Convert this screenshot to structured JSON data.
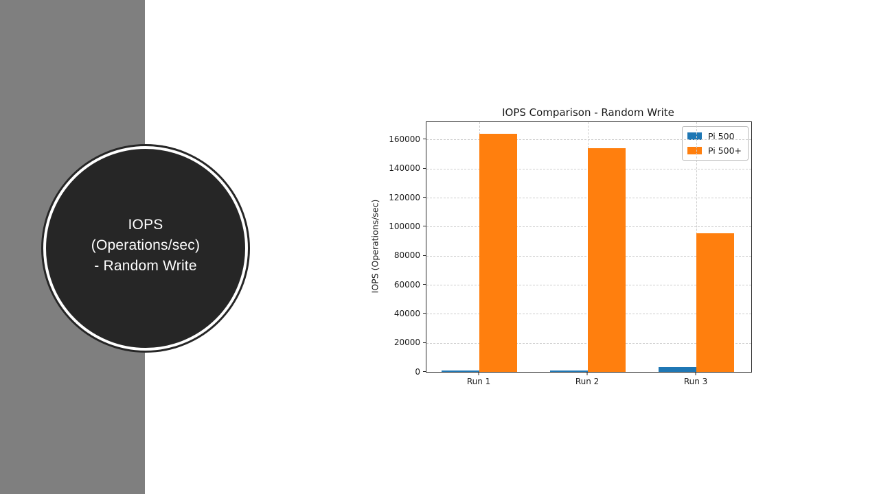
{
  "slide": {
    "title_lines": [
      "IOPS",
      "(Operations/sec)",
      "- Random Write"
    ],
    "accent_band_color": "#7f7f7f",
    "circle_fill_color": "#262626",
    "circle_ring_color": "#ffffff",
    "circle_text_color": "#ffffff"
  },
  "chart_data": {
    "type": "bar",
    "title": "IOPS Comparison - Random Write",
    "xlabel": "",
    "ylabel": "IOPS (Operations/sec)",
    "categories": [
      "Run 1",
      "Run 2",
      "Run 3"
    ],
    "series": [
      {
        "name": "Pi 500",
        "color": "#1f77b4",
        "values": [
          1100,
          1000,
          3500
        ]
      },
      {
        "name": "Pi 500+",
        "color": "#ff7f0e",
        "values": [
          164000,
          154000,
          95500
        ]
      }
    ],
    "yticks": [
      0,
      20000,
      40000,
      60000,
      80000,
      100000,
      120000,
      140000,
      160000
    ],
    "ylim": [
      0,
      172000
    ],
    "grid": true,
    "grid_style": "dashed",
    "legend_position": "upper right",
    "background": "#ffffff"
  }
}
